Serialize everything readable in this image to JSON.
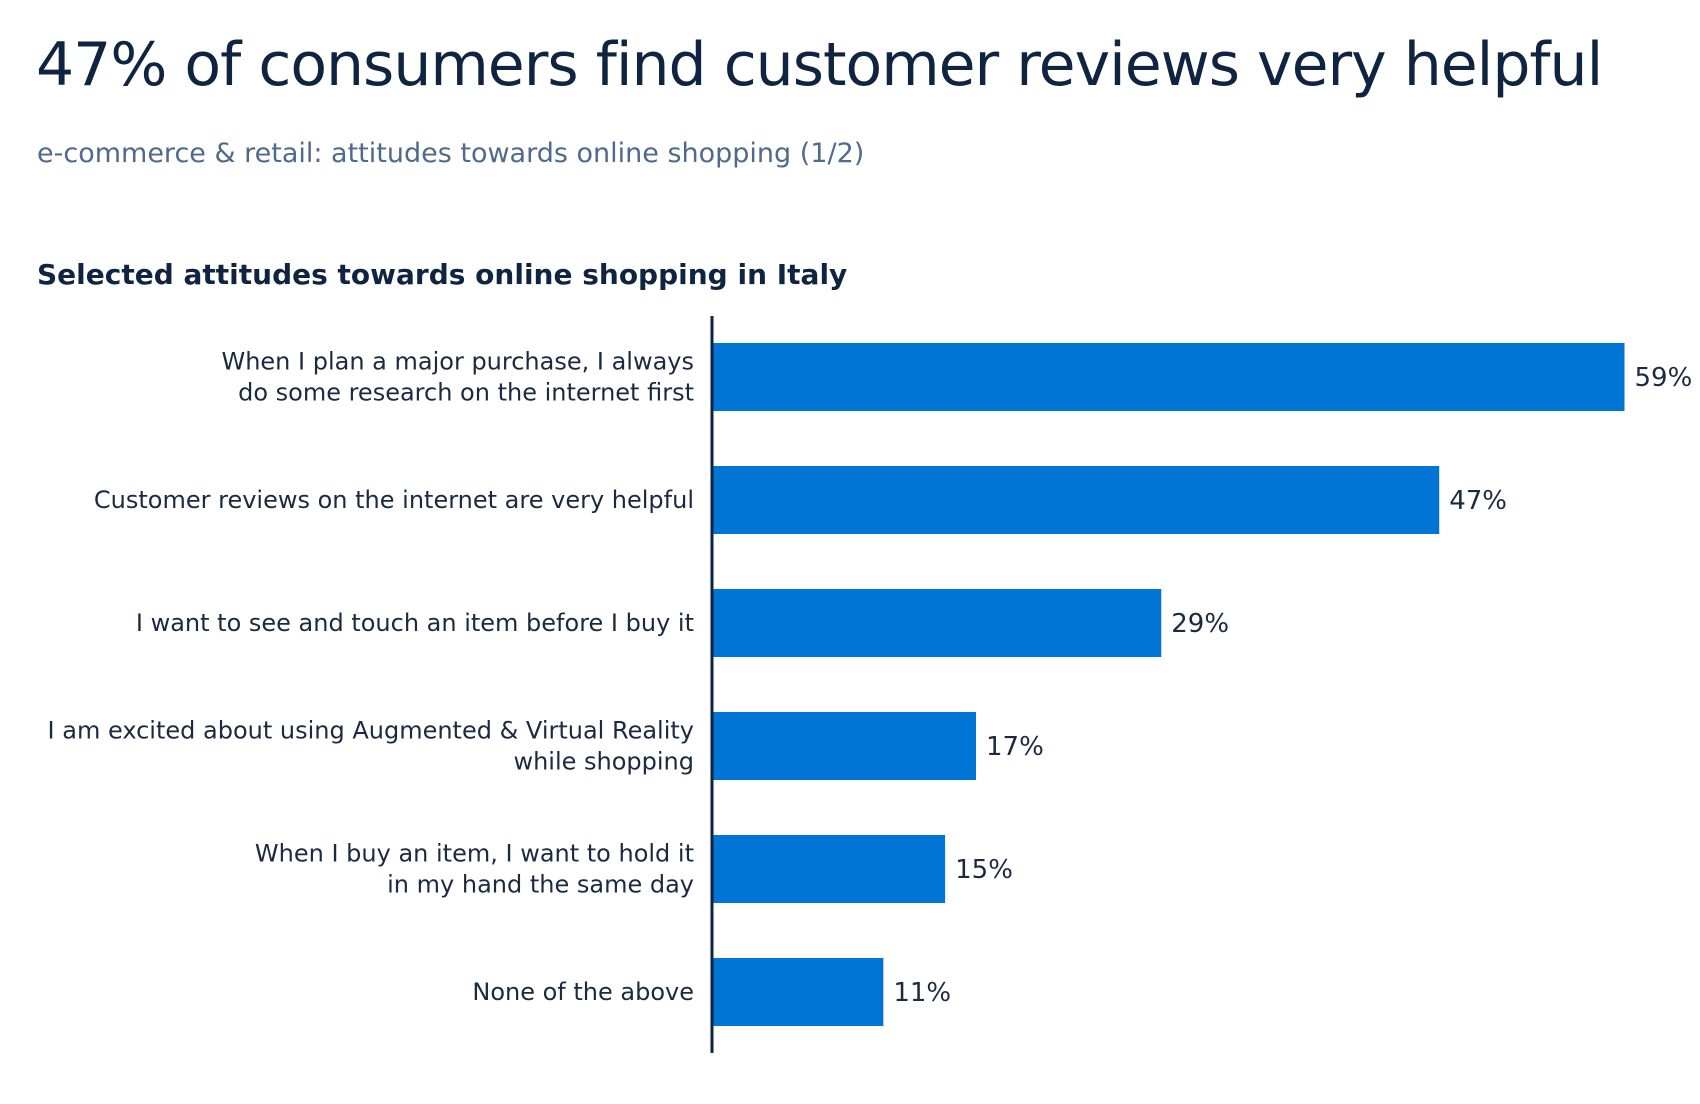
{
  "header": {
    "title": "47% of consumers find customer reviews very helpful",
    "subtitle": "e-commerce & retail: attitudes towards online shopping (1/2)"
  },
  "chart_data": {
    "type": "bar",
    "orientation": "horizontal",
    "title": "Selected attitudes towards online shopping in Italy",
    "xlabel": "",
    "ylabel": "",
    "categories": [
      [
        "When I plan a major purchase, I always",
        "do some research on the internet first"
      ],
      [
        "Customer reviews on the internet are very helpful"
      ],
      [
        "I want to see and touch an item before I buy it"
      ],
      [
        "I am excited about using Augmented & Virtual Reality",
        "while shopping"
      ],
      [
        "When I buy an item, I want to hold it",
        "in my hand the same day"
      ],
      [
        "None of the above"
      ]
    ],
    "values": [
      59,
      47,
      29,
      17,
      15,
      11
    ],
    "value_labels": [
      "59%",
      "47%",
      "29%",
      "17%",
      "15%",
      "11%"
    ],
    "xlim": [
      0,
      59
    ],
    "grid": false,
    "legend": "none",
    "colors": {
      "bar": "#0075d6",
      "axis": "#0f2440",
      "text": "#1a2a40"
    }
  }
}
